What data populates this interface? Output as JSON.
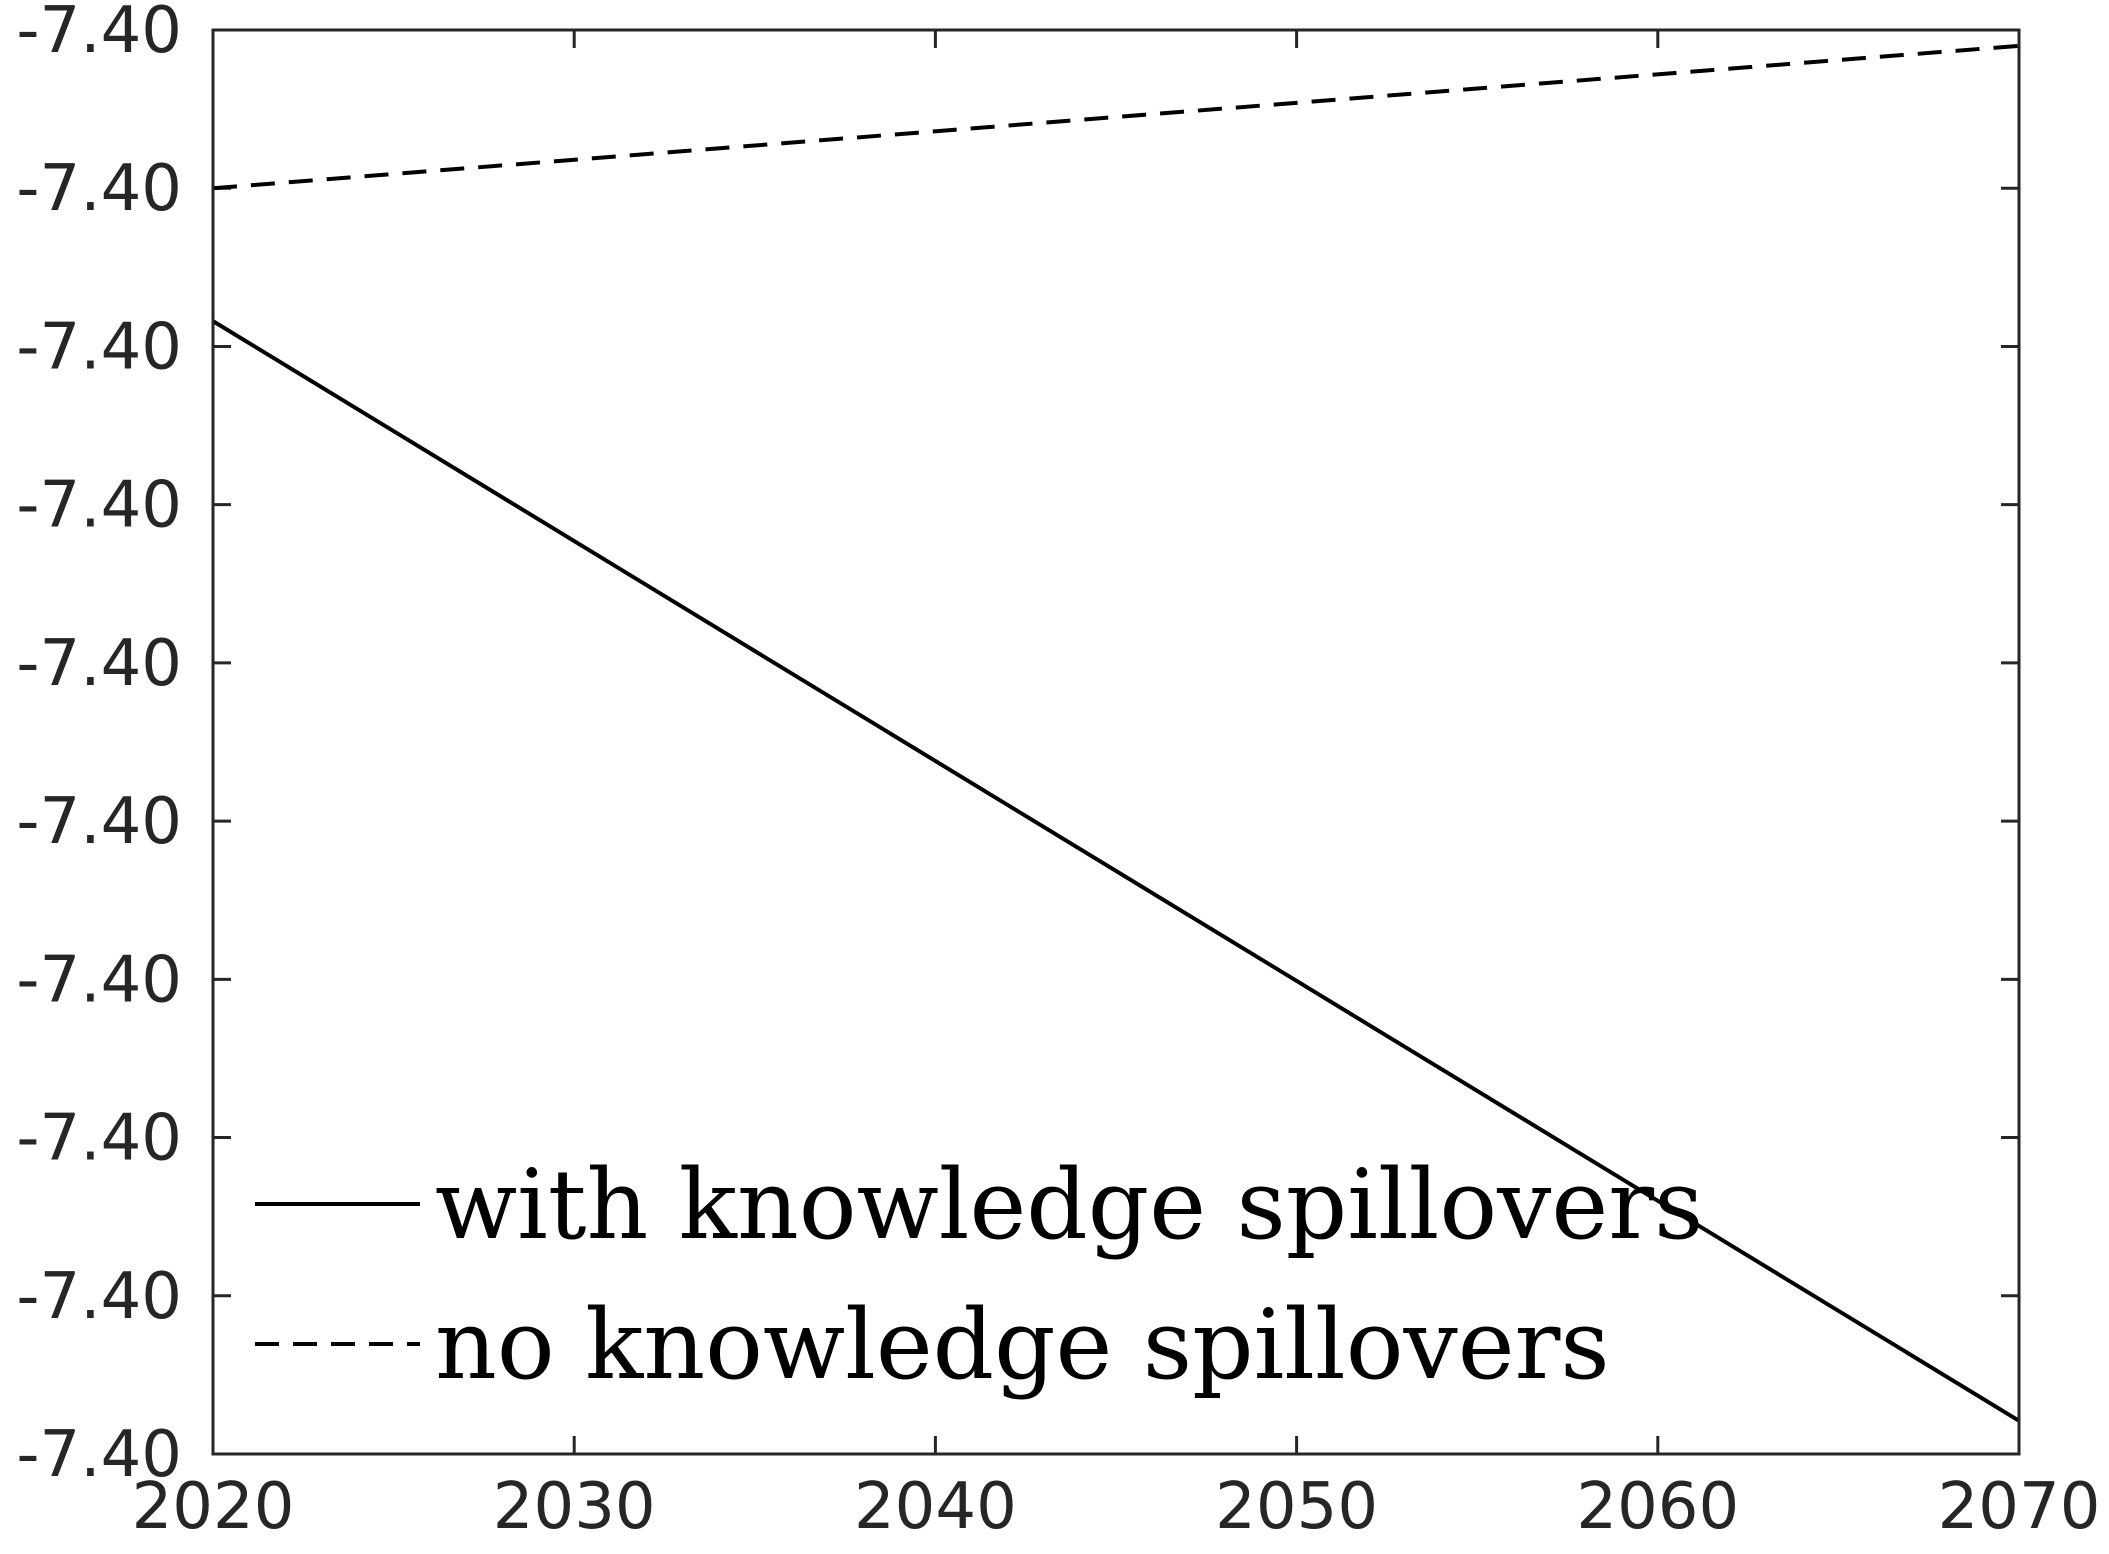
{
  "chart_data": {
    "type": "line",
    "title": "",
    "xlabel": "",
    "ylabel": "",
    "xlim": [
      2020,
      2070
    ],
    "x_ticks": [
      "2020",
      "2030",
      "2040",
      "2050",
      "2060",
      "2070"
    ],
    "x_tick_values": [
      2020,
      2030,
      2040,
      2050,
      2060,
      2070
    ],
    "ylim": [
      0,
      9
    ],
    "y_ticks": [
      "-7.40",
      "-7.40",
      "-7.40",
      "-7.40",
      "-7.40",
      "-7.40",
      "-7.40",
      "-7.40",
      "-7.40",
      "-7.40"
    ],
    "y_tick_positions": [
      0,
      1,
      2,
      3,
      4,
      5,
      6,
      7,
      8,
      9
    ],
    "grid": false,
    "legend_position": "bottom-left",
    "series": [
      {
        "name": "with knowledge spillovers",
        "style": "solid",
        "color": "#000000",
        "x": [
          2020,
          2070
        ],
        "y": [
          7.16,
          0.21
        ]
      },
      {
        "name": "no knowledge spillovers",
        "style": "dashed",
        "color": "#000000",
        "x": [
          2020,
          2070
        ],
        "y": [
          8.0,
          8.9
        ]
      }
    ]
  }
}
